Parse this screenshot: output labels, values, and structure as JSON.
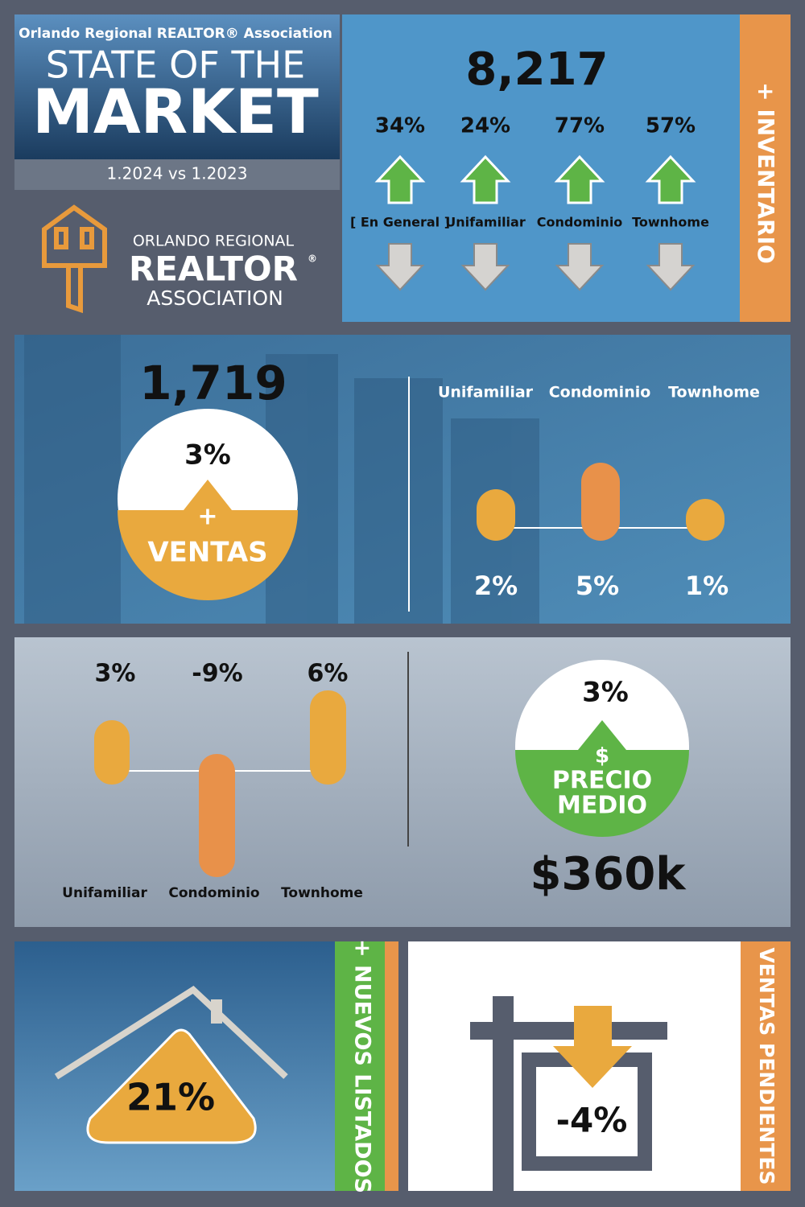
{
  "header": {
    "association": "Orlando Regional REALTOR® Association",
    "title_line1": "STATE OF THE",
    "title_line2": "MARKET",
    "period": "1.2024 vs 1.2023"
  },
  "logo": {
    "line1": "ORLANDO REGIONAL",
    "line2": "REALTOR",
    "mark": "®",
    "line3": "ASSOCIATION"
  },
  "inventory": {
    "label": "+ INVENTARIO",
    "total": "8,217",
    "items": [
      {
        "pct": "34%",
        "label": "[ En General ]"
      },
      {
        "pct": "24%",
        "label": "Unifamiliar"
      },
      {
        "pct": "77%",
        "label": "Condominio"
      },
      {
        "pct": "57%",
        "label": "Townhome"
      }
    ]
  },
  "sales": {
    "total": "1,719",
    "change": "3%",
    "plus": "+",
    "label": "VENTAS",
    "items": [
      {
        "label": "Unifamiliar",
        "pct": "2%"
      },
      {
        "label": "Condominio",
        "pct": "5%"
      },
      {
        "label": "Townhome",
        "pct": "1%"
      }
    ]
  },
  "price": {
    "items": [
      {
        "pct": "3%",
        "label": "Unifamiliar"
      },
      {
        "pct": "-9%",
        "label": "Condominio"
      },
      {
        "pct": "6%",
        "label": "Townhome"
      }
    ],
    "change": "3%",
    "symbol": "$",
    "label_line1": "PRECIO",
    "label_line2": "MEDIO",
    "median": "$360k"
  },
  "new_listings": {
    "label": "+ NUEVOS LISTADOS",
    "pct": "21%"
  },
  "pending": {
    "label": "VENTAS PENDIENTES",
    "pct": "-4%"
  }
}
